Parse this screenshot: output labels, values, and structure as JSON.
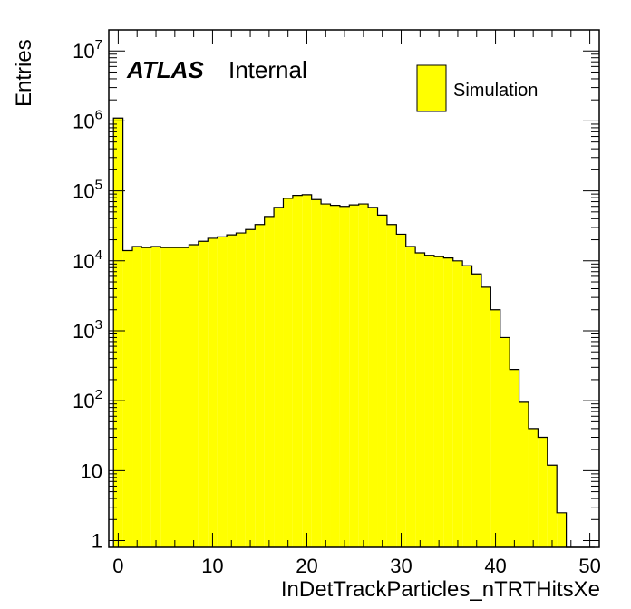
{
  "chart_data": {
    "type": "bar",
    "subtype": "histogram",
    "xlabel": "InDetTrackParticles_nTRTHitsXe",
    "ylabel": "Entries",
    "xlim": [
      -1,
      51
    ],
    "ylim": [
      0.8,
      20000000
    ],
    "yscale": "log",
    "grid": false,
    "bin_width": 1,
    "bin_edges_start": -0.5,
    "x_ticks": [
      0,
      10,
      20,
      30,
      40,
      50
    ],
    "y_ticks": [
      {
        "value": 1,
        "mantissa": "1",
        "exp": ""
      },
      {
        "value": 10,
        "mantissa": "10",
        "exp": ""
      },
      {
        "value": 100,
        "mantissa": "10",
        "exp": "2"
      },
      {
        "value": 1000,
        "mantissa": "10",
        "exp": "3"
      },
      {
        "value": 10000,
        "mantissa": "10",
        "exp": "4"
      },
      {
        "value": 100000,
        "mantissa": "10",
        "exp": "5"
      },
      {
        "value": 1000000,
        "mantissa": "10",
        "exp": "6"
      },
      {
        "value": 10000000,
        "mantissa": "10",
        "exp": "7"
      }
    ],
    "series": [
      {
        "name": "Simulation",
        "color": "#ffff00",
        "values": [
          1100000,
          14000,
          16000,
          15500,
          16000,
          15500,
          15500,
          15500,
          17000,
          19000,
          21000,
          22000,
          23500,
          25000,
          28000,
          33000,
          43000,
          58000,
          78000,
          86000,
          88000,
          75000,
          65000,
          62000,
          60000,
          63000,
          65000,
          58000,
          45000,
          33000,
          24000,
          16000,
          13000,
          12000,
          11500,
          11000,
          10000,
          8500,
          6500,
          4200,
          2000,
          800,
          280,
          95,
          40,
          30,
          12,
          2.5,
          0.8,
          0.8,
          0.8
        ]
      }
    ],
    "legend": {
      "position": "top-right",
      "entries": [
        "Simulation"
      ]
    },
    "annotations": {
      "atlas_label": "ATLAS",
      "status_label": "Internal"
    }
  }
}
